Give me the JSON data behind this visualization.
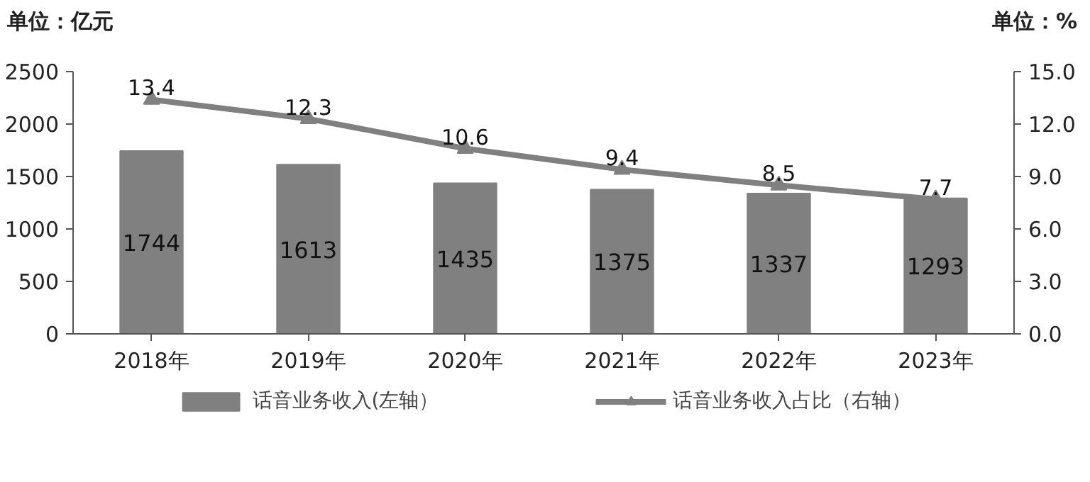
{
  "chart_data": {
    "type": "bar",
    "ylabel": "单位：亿元",
    "y2label": "单位：%",
    "categories": [
      "2018年",
      "2019年",
      "2020年",
      "2021年",
      "2022年",
      "2023年"
    ],
    "series": [
      {
        "name": "话音业务收入(左轴）",
        "color": "#808080",
        "values": [
          1744,
          1613,
          1435,
          1375,
          1337,
          1293
        ]
      },
      {
        "name": "话音业务收入占比（右轴）",
        "type": "line",
        "axis": "y2",
        "color": "#808080",
        "marker": "triangle",
        "values": [
          13.4,
          12.3,
          10.6,
          9.4,
          8.5,
          7.7
        ]
      }
    ],
    "ylim": [
      0,
      2500
    ],
    "yticks": [
      0,
      500,
      1000,
      1500,
      2000,
      2500
    ],
    "y2lim": [
      0,
      15
    ],
    "y2ticks": [
      {
        "value": 0,
        "label": "0.0"
      },
      {
        "value": 3,
        "label": "3.0"
      },
      {
        "value": 6,
        "label": "6.0"
      },
      {
        "value": 9,
        "label": "9.0"
      },
      {
        "value": 12,
        "label": "12.0"
      },
      {
        "value": 15,
        "label": "15.0"
      }
    ],
    "data_labels": true,
    "grid": false,
    "legend": "bottom"
  }
}
